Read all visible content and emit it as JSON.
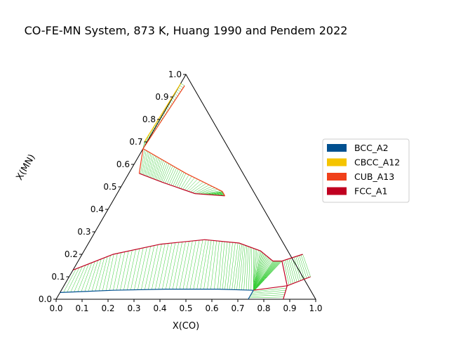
{
  "chart_data": {
    "type": "ternary-phase-diagram",
    "title": "CO-FE-MN System, 873 K, Huang 1990 and Pendem 2022",
    "xlabel": "X(CO)",
    "ylabel": "X(MN)",
    "xlim": [
      0,
      1
    ],
    "ylim": [
      0,
      1
    ],
    "x_ticks": [
      "0.0",
      "0.1",
      "0.2",
      "0.3",
      "0.4",
      "0.5",
      "0.6",
      "0.7",
      "0.8",
      "0.9",
      "1.0"
    ],
    "y_ticks": [
      "0.0",
      "0.1",
      "0.2",
      "0.3",
      "0.4",
      "0.5",
      "0.6",
      "0.7",
      "0.8",
      "0.9",
      "1.0"
    ],
    "legend_position": "right",
    "legend": [
      {
        "name": "BCC_A2",
        "color": "#005090"
      },
      {
        "name": "CBCC_A12",
        "color": "#f5c400"
      },
      {
        "name": "CUB_A13",
        "color": "#f0401a"
      },
      {
        "name": "FCC_A1",
        "color": "#c00020"
      }
    ],
    "tie_line_color": "#33cc33",
    "boundaries": [
      {
        "phase": "BCC_A2",
        "color": "#005090",
        "points": [
          [
            0.0,
            0.03
          ],
          [
            0.2,
            0.04
          ],
          [
            0.4,
            0.045
          ],
          [
            0.6,
            0.045
          ],
          [
            0.74,
            0.04
          ]
        ]
      },
      {
        "phase": "FCC_A1",
        "color": "#c00020",
        "points": [
          [
            0.0,
            0.13
          ],
          [
            0.12,
            0.2
          ],
          [
            0.28,
            0.245
          ],
          [
            0.44,
            0.265
          ],
          [
            0.58,
            0.25
          ],
          [
            0.68,
            0.215
          ],
          [
            0.75,
            0.17
          ],
          [
            0.785,
            0.17
          ]
        ]
      },
      {
        "phase": "FCC_A1",
        "color": "#c00020",
        "points": [
          [
            0.74,
            0.04
          ],
          [
            0.86,
            0.06
          ],
          [
            0.785,
            0.17
          ]
        ]
      },
      {
        "phase": "FCC_A1",
        "color": "#c00020",
        "points": [
          [
            0.785,
            0.17
          ],
          [
            0.85,
            0.2
          ]
        ]
      },
      {
        "phase": "FCC_A1",
        "color": "#c00020",
        "points": [
          [
            0.86,
            0.06
          ],
          [
            0.93,
            0.1
          ]
        ]
      },
      {
        "phase": "FCC_A1",
        "color": "#c00020",
        "points": [
          [
            0.86,
            0.06
          ],
          [
            0.875,
            0.0
          ]
        ]
      },
      {
        "phase": "BCC_A2",
        "color": "#005090",
        "points": [
          [
            0.74,
            0.04
          ],
          [
            0.74,
            0.0
          ]
        ]
      },
      {
        "phase": "FCC_A1",
        "color": "#c00020",
        "points": [
          [
            0.04,
            0.56
          ],
          [
            0.15,
            0.52
          ],
          [
            0.3,
            0.47
          ],
          [
            0.42,
            0.46
          ]
        ]
      },
      {
        "phase": "CUB_A13",
        "color": "#f0401a",
        "points": [
          [
            0.0,
            0.67
          ],
          [
            0.1,
            0.62
          ],
          [
            0.22,
            0.56
          ],
          [
            0.4,
            0.48
          ],
          [
            0.42,
            0.46
          ]
        ]
      },
      {
        "phase": "CUB_A13",
        "color": "#f0401a",
        "points": [
          [
            0.04,
            0.56
          ],
          [
            0.0,
            0.67
          ]
        ]
      },
      {
        "phase": "CBCC_A12",
        "color": "#f5c400",
        "points": [
          [
            -0.01,
            0.7
          ],
          [
            0.0,
            0.96
          ]
        ]
      },
      {
        "phase": "CUB_A13",
        "color": "#f0401a",
        "points": [
          [
            0.0,
            0.67
          ],
          [
            0.02,
            0.95
          ]
        ]
      }
    ]
  }
}
